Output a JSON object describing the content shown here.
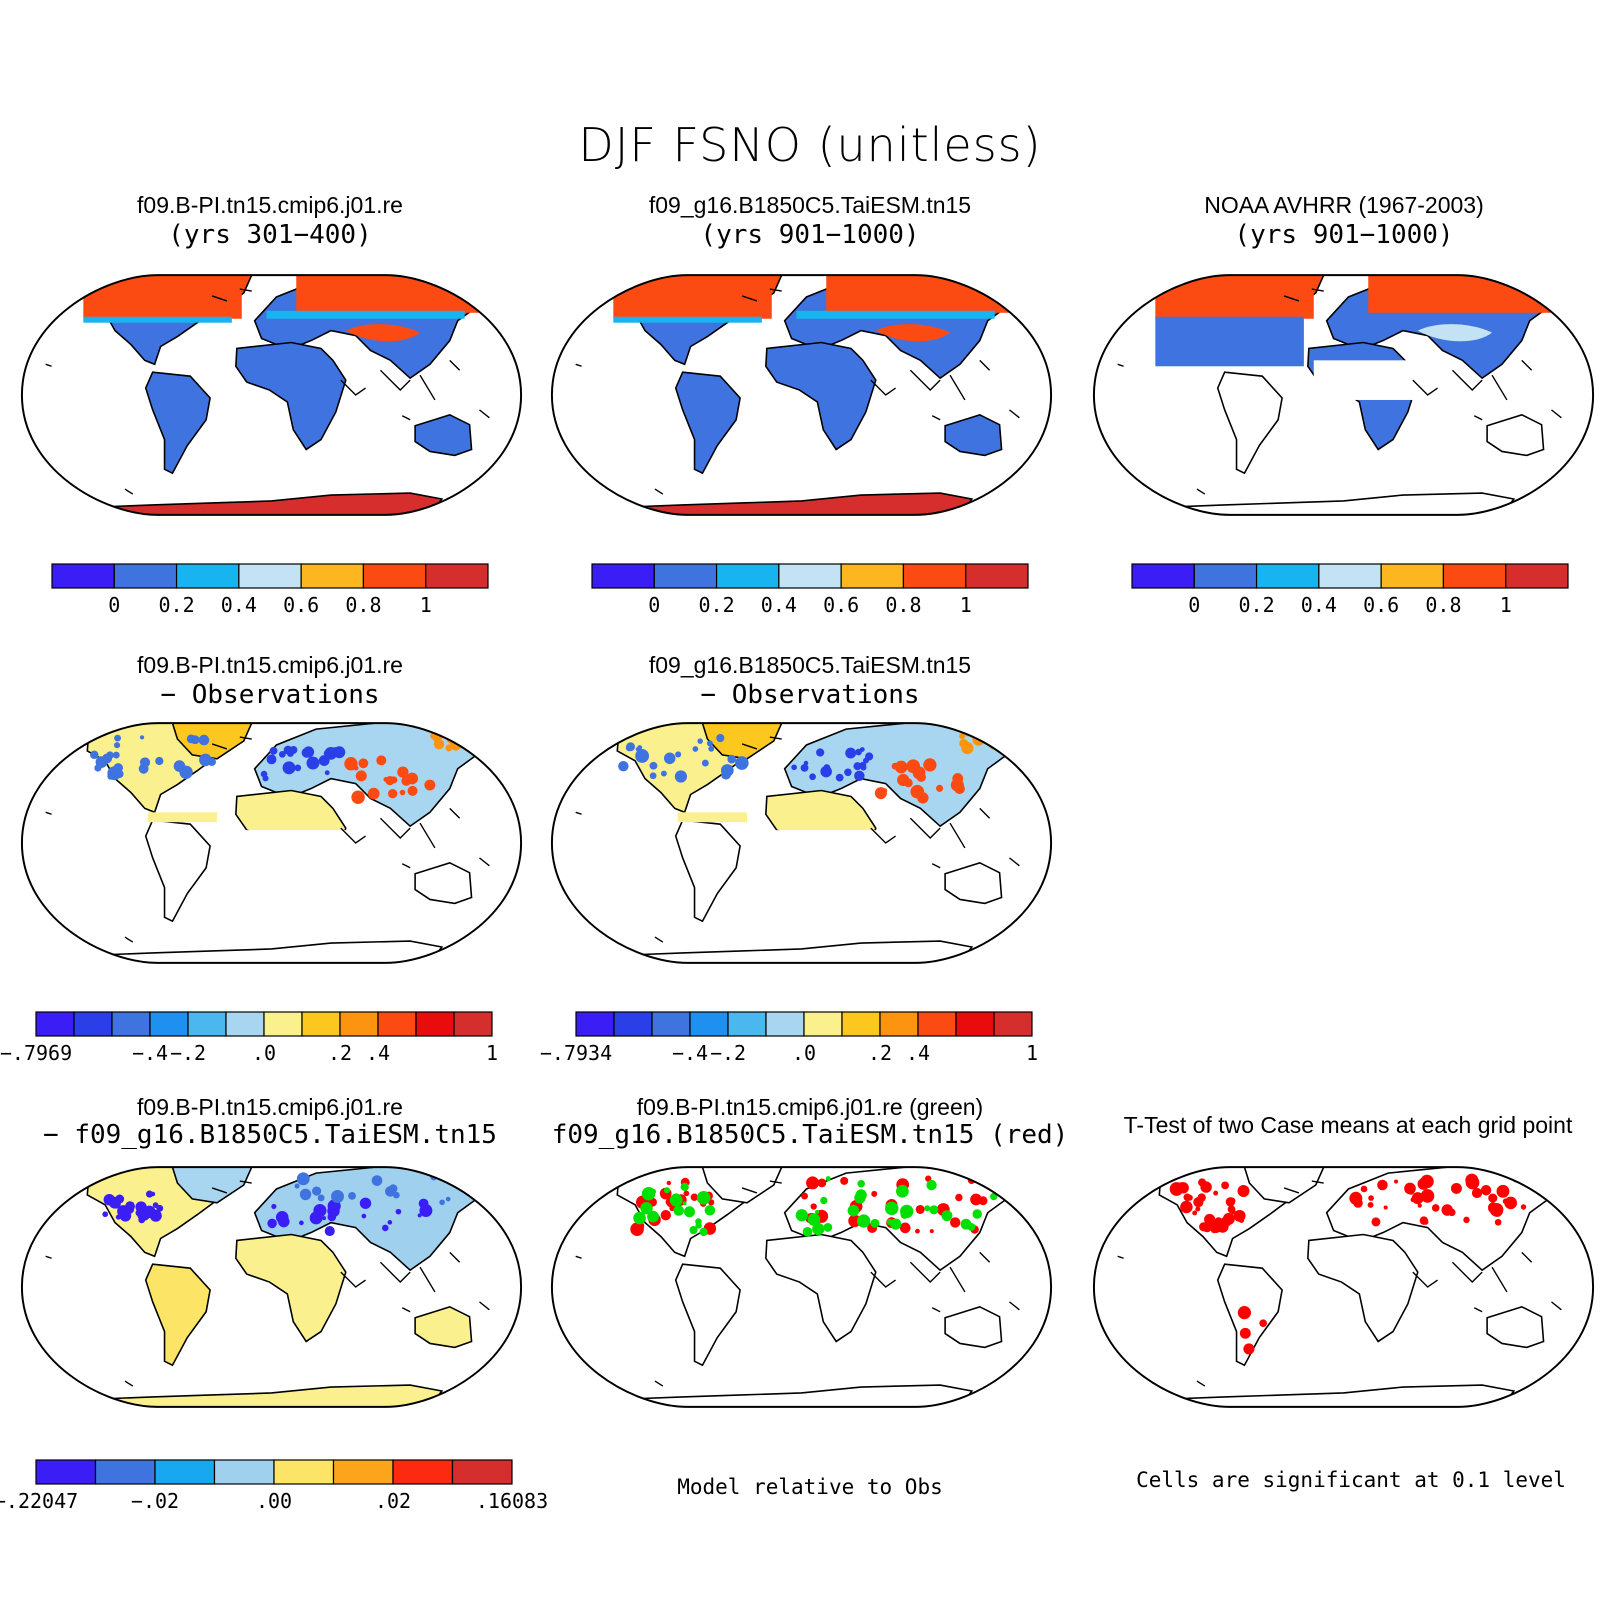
{
  "title": "DJF FSNO (unitless)",
  "colors": {
    "land_snowfree": "#3f74e0",
    "snow_high": "#fb4a12",
    "antarctic": "#d62d2d",
    "diff_low": "#fbf08e",
    "sig_red": "#ff0000",
    "sig_green": "#00e000"
  },
  "panels": [
    {
      "id": "p1",
      "title": "f09.B-PI.tn15.cmip6.j01.re",
      "subtitle": "(yrs 301−400)",
      "kind": "model"
    },
    {
      "id": "p2",
      "title": "f09_g16.B1850C5.TaiESM.tn15",
      "subtitle": "(yrs 901−1000)",
      "kind": "model"
    },
    {
      "id": "p3",
      "title": "NOAA AVHRR (1967-2003)",
      "subtitle": "(yrs 901−1000)",
      "kind": "obs"
    },
    {
      "id": "p4",
      "title": "f09.B-PI.tn15.cmip6.j01.re",
      "subtitle": "− Observations",
      "kind": "diff"
    },
    {
      "id": "p5",
      "title": "f09_g16.B1850C5.TaiESM.tn15",
      "subtitle": "− Observations",
      "kind": "diff"
    },
    {
      "id": "p7",
      "title": "f09.B-PI.tn15.cmip6.j01.re",
      "subtitle": "− f09_g16.B1850C5.TaiESM.tn15",
      "kind": "casediff"
    },
    {
      "id": "p8",
      "title": "f09.B-PI.tn15.cmip6.j01.re (green)",
      "subtitle": "f09_g16.B1850C5.TaiESM.tn15 (red)",
      "kind": "sig2"
    },
    {
      "id": "p9",
      "title": "T-Test of two Case means at each grid point",
      "subtitle": "",
      "kind": "ttest"
    }
  ],
  "colorbars": [
    {
      "id": "cb1",
      "colors": [
        "#3a1ef5",
        "#3f74e0",
        "#18b4f0",
        "#c3e2f4",
        "#fcb61f",
        "#fb4a12",
        "#d62d2d"
      ],
      "labels": [
        "0",
        "0.2",
        "0.4",
        "0.6",
        "0.8",
        "1"
      ]
    },
    {
      "id": "cb2",
      "colors": [
        "#3a1ef5",
        "#3f74e0",
        "#18b4f0",
        "#c3e2f4",
        "#fcb61f",
        "#fb4a12",
        "#d62d2d"
      ],
      "labels": [
        "0",
        "0.2",
        "0.4",
        "0.6",
        "0.8",
        "1"
      ]
    },
    {
      "id": "cb3",
      "colors": [
        "#3a1ef5",
        "#3f74e0",
        "#18b4f0",
        "#c3e2f4",
        "#fcb61f",
        "#fb4a12",
        "#d62d2d"
      ],
      "labels": [
        "0",
        "0.2",
        "0.4",
        "0.6",
        "0.8",
        "1"
      ]
    },
    {
      "id": "cb4",
      "colors": [
        "#3a1ef5",
        "#2a3fe8",
        "#3f74e0",
        "#1e90f0",
        "#4ab8ee",
        "#a8d6f0",
        "#fbf08e",
        "#fcc820",
        "#fc9410",
        "#fb4a12",
        "#e80c0c",
        "#d62d2d"
      ],
      "labels": [
        "−.7969",
        "−.4",
        "−.2",
        ".0",
        ".2",
        ".4",
        "1"
      ]
    },
    {
      "id": "cb5",
      "colors": [
        "#3a1ef5",
        "#2a3fe8",
        "#3f74e0",
        "#1e90f0",
        "#4ab8ee",
        "#a8d6f0",
        "#fbf08e",
        "#fcc820",
        "#fc9410",
        "#fb4a12",
        "#e80c0c",
        "#d62d2d"
      ],
      "labels": [
        "−.7934",
        "−.4",
        "−.2",
        ".0",
        ".2",
        ".4",
        "1"
      ]
    },
    {
      "id": "cb7",
      "colors": [
        "#3a1ef5",
        "#3f74e0",
        "#18a8f0",
        "#9fd0ee",
        "#fbe466",
        "#fca41a",
        "#fb2a10",
        "#d62d2d"
      ],
      "labels": [
        "−.22047",
        "−.02",
        ".00",
        ".02",
        ".16083"
      ]
    }
  ],
  "notes": {
    "sig2": "Model relative to Obs",
    "ttest": "Cells are significant at 0.1 level"
  }
}
